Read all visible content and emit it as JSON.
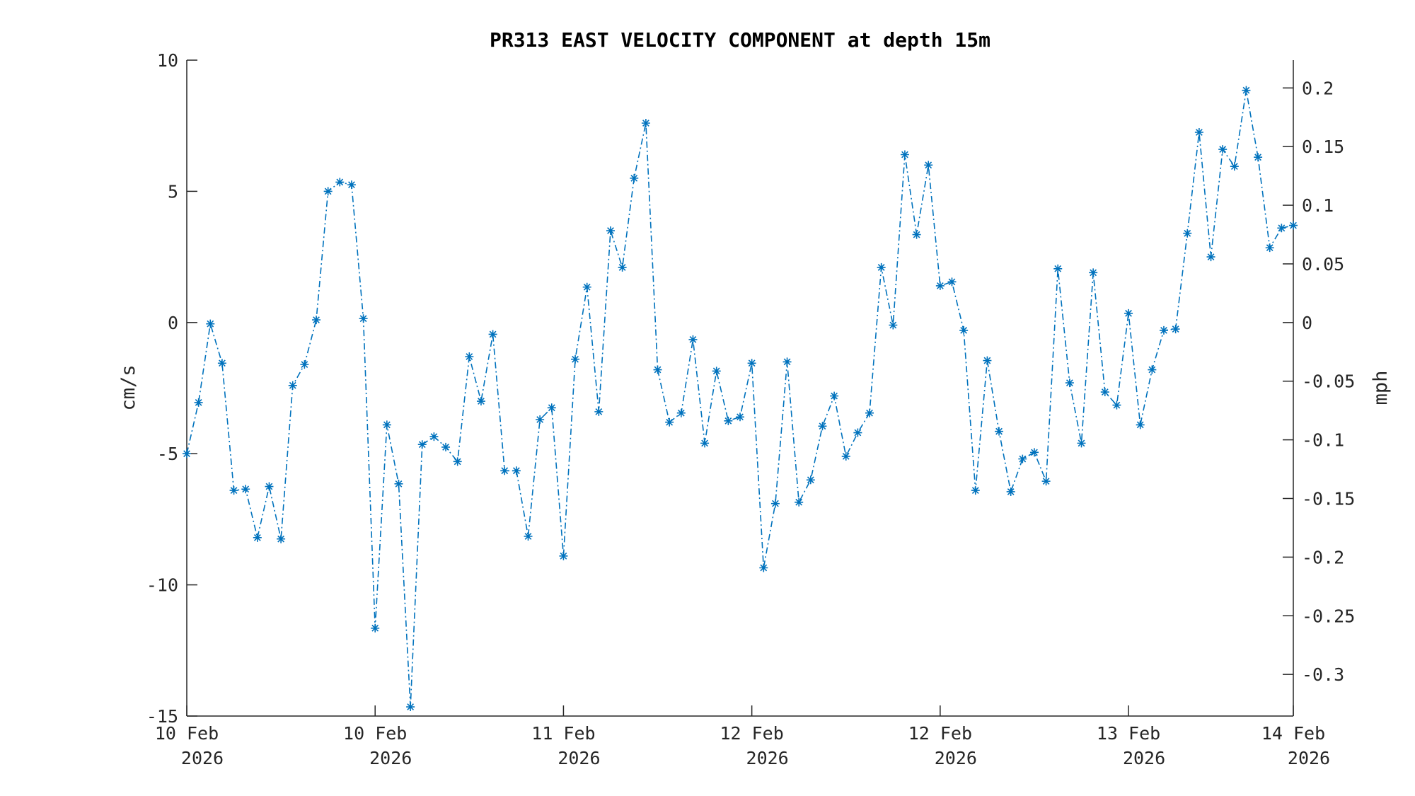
{
  "chart_data": {
    "type": "line",
    "title": "PR313 EAST VELOCITY COMPONENT at depth 15m",
    "ylabel": "cm/s",
    "y2label": "mph",
    "ylim": [
      -15,
      10
    ],
    "y2lim": [
      -0.3355,
      0.2237
    ],
    "yticks": [
      "10",
      "5",
      "0",
      "-5",
      "-10",
      "-15"
    ],
    "y2ticks": [
      "0.2",
      "0.15",
      "0.1",
      "0.05",
      "0",
      "-0.05",
      "-0.1",
      "-0.15",
      "-0.2",
      "-0.25",
      "-0.3"
    ],
    "xticks": [
      {
        "date": "10 Feb",
        "year": "2026"
      },
      {
        "date": "10 Feb",
        "year": "2026"
      },
      {
        "date": "11 Feb",
        "year": "2026"
      },
      {
        "date": "12 Feb",
        "year": "2026"
      },
      {
        "date": "12 Feb",
        "year": "2026"
      },
      {
        "date": "13 Feb",
        "year": "2026"
      },
      {
        "date": "14 Feb",
        "year": "2026"
      }
    ],
    "grid": false,
    "line_style": "dash-dot",
    "marker": "asterisk",
    "color": "#0072BD",
    "series": [
      {
        "values": [
          -5.0,
          -3.05,
          -0.05,
          -1.55,
          -6.4,
          -6.35,
          -8.2,
          -6.25,
          -8.25,
          -2.4,
          -1.6,
          0.1,
          5.0,
          5.35,
          5.25,
          0.15,
          -11.65,
          -3.9,
          -6.15,
          -14.65,
          -4.65,
          -4.35,
          -4.75,
          -5.3,
          -1.3,
          -3.0,
          -0.45,
          -5.65,
          -5.65,
          -8.15,
          -3.7,
          -3.25,
          -8.9,
          -1.4,
          1.35,
          -3.4,
          3.5,
          2.1,
          5.5,
          7.6,
          -1.8,
          -3.8,
          -3.45,
          -0.65,
          -4.6,
          -1.85,
          -3.75,
          -3.6,
          -1.55,
          -9.35,
          -6.9,
          -1.5,
          -6.85,
          -6.0,
          -3.95,
          -2.8,
          -5.1,
          -4.2,
          -3.45,
          2.1,
          -0.1,
          6.4,
          3.35,
          6.0,
          1.4,
          1.55,
          -0.3,
          -6.4,
          -1.45,
          -4.15,
          -6.45,
          -5.2,
          -4.95,
          -6.05,
          2.05,
          -2.3,
          -4.6,
          1.9,
          -2.65,
          -3.15,
          0.35,
          -3.9,
          -1.8,
          -0.3,
          -0.25,
          3.4,
          7.25,
          2.5,
          6.6,
          5.95,
          8.85,
          6.3,
          2.85,
          3.6,
          3.7
        ]
      }
    ]
  }
}
